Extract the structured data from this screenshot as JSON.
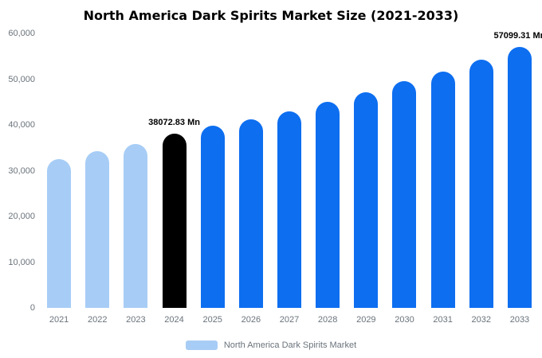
{
  "chart_data": {
    "type": "bar",
    "title": "North America Dark Spirits Market Size (2021-2033)",
    "xlabel": "",
    "ylabel": "",
    "unit": "Mn",
    "categories": [
      "2021",
      "2022",
      "2023",
      "2024",
      "2025",
      "2026",
      "2027",
      "2028",
      "2029",
      "2030",
      "2031",
      "2032",
      "2033"
    ],
    "values": [
      32600,
      34200,
      35800,
      38072.83,
      39750,
      41200,
      43000,
      45100,
      47200,
      49600,
      51700,
      54250,
      57099.31
    ],
    "bar_colors": [
      "#A7CDF6",
      "#A7CDF6",
      "#A7CDF6",
      "#000000",
      "#0D6EF0",
      "#0D6EF0",
      "#0D6EF0",
      "#0D6EF0",
      "#0D6EF0",
      "#0D6EF0",
      "#0D6EF0",
      "#0D6EF0",
      "#0D6EF0"
    ],
    "ylim": [
      0,
      60000
    ],
    "yticks": [
      0,
      10000,
      20000,
      30000,
      40000,
      50000,
      60000
    ],
    "ytick_labels": [
      "0",
      "10,000",
      "20,000",
      "30,000",
      "40,000",
      "50,000",
      "60,000"
    ],
    "annotations": [
      {
        "index": 3,
        "text": "38072.83 Mn"
      },
      {
        "index": 12,
        "text": "57099.31 Mn"
      }
    ],
    "grid": false,
    "legend_position": "bottom",
    "legend": "North America Dark Spirits Market",
    "legend_swatch_color": "#A7CDF6"
  }
}
